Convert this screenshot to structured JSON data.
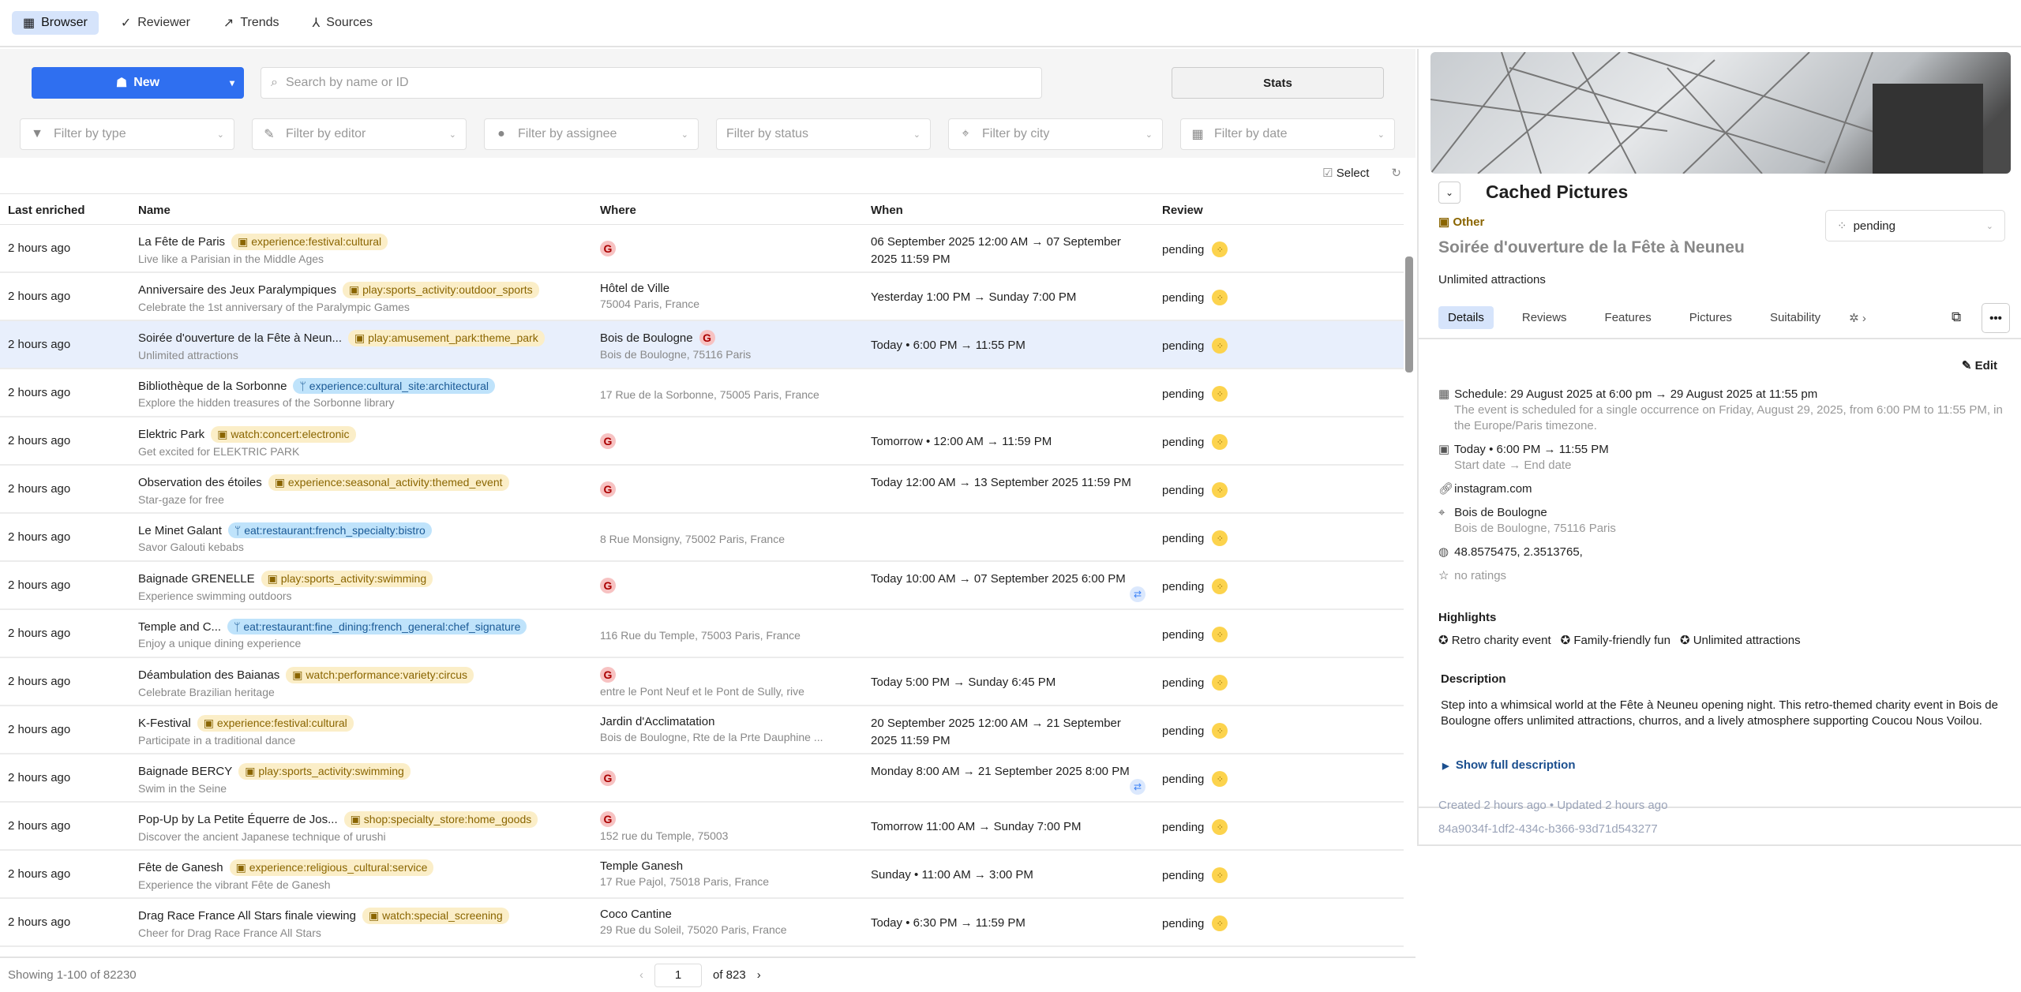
{
  "nav": [
    {
      "label": "Browser",
      "icon": "table-icon",
      "active": true
    },
    {
      "label": "Reviewer",
      "icon": "check-circle-icon"
    },
    {
      "label": "Trends",
      "icon": "chart-line-icon"
    },
    {
      "label": "Sources",
      "icon": "sources-icon"
    }
  ],
  "toolbar": {
    "new_label": "New",
    "search_placeholder": "Search by name or ID",
    "stats_label": "Stats",
    "select_label": "Select"
  },
  "filters": [
    {
      "label": "Filter by type",
      "icon": "funnel-icon"
    },
    {
      "label": "Filter by editor",
      "icon": "editor-icon"
    },
    {
      "label": "Filter by assignee",
      "icon": "user-icon"
    },
    {
      "label": "Filter by status",
      "icon": ""
    },
    {
      "label": "Filter by city",
      "icon": "pin-icon"
    },
    {
      "label": "Filter by date",
      "icon": "calendar-icon"
    }
  ],
  "columns": [
    "Last enriched",
    "Name",
    "Where",
    "When",
    "Review"
  ],
  "colors": {
    "accent": "#2f6ff0",
    "selected_row": "#e8effc",
    "tag_yellow": "#fbeec8",
    "tag_blue": "#bfe3fb",
    "pending": "#fcd34d"
  },
  "rows": [
    {
      "enriched": "2 hours ago",
      "name": "La Fête de Paris",
      "tag": "experience:festival:cultural",
      "tagc": "y",
      "sub": "Live like a Parisian in the Middle Ages",
      "where": "",
      "where_g": true,
      "where_sub": "",
      "when": "06 September 2025 12:00 AM → 07 September 2025 11:59 PM",
      "review": "pending"
    },
    {
      "enriched": "2 hours ago",
      "name": "Anniversaire des Jeux Paralympiques",
      "tag": "play:sports_activity:outdoor_sports",
      "tagc": "y",
      "sub": "Celebrate the 1st anniversary of the Paralympic Games",
      "where": "Hôtel de Ville",
      "where_g": false,
      "where_sub": "75004 Paris, France",
      "when": "Yesterday 1:00 PM → Sunday 7:00 PM",
      "review": "pending"
    },
    {
      "enriched": "2 hours ago",
      "name": "Soirée d'ouverture de la Fête à Neun...",
      "tag": "play:amusement_park:theme_park",
      "tagc": "y",
      "sub": "Unlimited attractions",
      "where": "Bois de Boulogne",
      "where_g": true,
      "where_sub": "Bois de Boulogne, 75116 Paris",
      "when": "Today • 6:00 PM → 11:55 PM",
      "review": "pending",
      "selected": true
    },
    {
      "enriched": "2 hours ago",
      "name": "Bibliothèque de la Sorbonne",
      "tag": "experience:cultural_site:architectural",
      "tagc": "b",
      "sub": "Explore the hidden treasures of the Sorbonne library",
      "where": "",
      "where_g": false,
      "where_sub": "17 Rue de la Sorbonne, 75005 Paris, France",
      "when": "",
      "review": "pending"
    },
    {
      "enriched": "2 hours ago",
      "name": "Elektric Park",
      "tag": "watch:concert:electronic",
      "tagc": "y",
      "sub": "Get excited for ELEKTRIC PARK",
      "where": "",
      "where_g": true,
      "where_sub": "",
      "when": "Tomorrow • 12:00 AM → 11:59 PM",
      "review": "pending"
    },
    {
      "enriched": "2 hours ago",
      "name": "Observation des étoiles",
      "tag": "experience:seasonal_activity:themed_event",
      "tagc": "y",
      "sub": "Star-gaze for free",
      "where": "",
      "where_g": true,
      "where_sub": "",
      "when": "Today 12:00 AM → 13 September 2025 11:59 PM",
      "review": "pending"
    },
    {
      "enriched": "2 hours ago",
      "name": "Le Minet Galant",
      "tag": "eat:restaurant:french_specialty:bistro",
      "tagc": "b",
      "sub": "Savor Galouti kebabs",
      "where": "",
      "where_g": false,
      "where_sub": "8 Rue Monsigny, 75002 Paris, France",
      "when": "",
      "review": "pending"
    },
    {
      "enriched": "2 hours ago",
      "name": "Baignade GRENELLE",
      "tag": "play:sports_activity:swimming",
      "tagc": "y",
      "sub": "Experience swimming outdoors",
      "where": "",
      "where_g": true,
      "where_sub": "",
      "when": "Today 10:00 AM → 07 September 2025 6:00 PM",
      "recurring": true,
      "review": "pending"
    },
    {
      "enriched": "2 hours ago",
      "name": "Temple and C...",
      "tag": "eat:restaurant:fine_dining:french_general:chef_signature",
      "tagc": "b",
      "sub": "Enjoy a unique dining experience",
      "where": "",
      "where_g": false,
      "where_sub": "116 Rue du Temple, 75003 Paris, France",
      "when": "",
      "review": "pending"
    },
    {
      "enriched": "2 hours ago",
      "name": "Déambulation des Baianas",
      "tag": "watch:performance:variety:circus",
      "tagc": "y",
      "sub": "Celebrate Brazilian heritage",
      "where": "",
      "where_g": true,
      "where_sub": "entre le Pont Neuf et le Pont de Sully, rive",
      "when": "Today 5:00 PM → Sunday 6:45 PM",
      "review": "pending"
    },
    {
      "enriched": "2 hours ago",
      "name": "K-Festival",
      "tag": "experience:festival:cultural",
      "tagc": "y",
      "sub": "Participate in a traditional dance",
      "where": "Jardin d'Acclimatation",
      "where_g": false,
      "where_sub": "Bois de Boulogne, Rte de la Prte Dauphine ...",
      "when": "20 September 2025 12:00 AM → 21 September 2025 11:59 PM",
      "review": "pending"
    },
    {
      "enriched": "2 hours ago",
      "name": "Baignade BERCY",
      "tag": "play:sports_activity:swimming",
      "tagc": "y",
      "sub": "Swim in the Seine",
      "where": "",
      "where_g": true,
      "where_sub": "",
      "when": "Monday 8:00 AM → 21 September 2025 8:00 PM",
      "recurring": true,
      "review": "pending"
    },
    {
      "enriched": "2 hours ago",
      "name": "Pop-Up by La Petite Équerre de Jos...",
      "tag": "shop:specialty_store:home_goods",
      "tagc": "y",
      "sub": "Discover the ancient Japanese technique of urushi",
      "where": "",
      "where_g": true,
      "where_sub": "152 rue du Temple, 75003",
      "when": "Tomorrow 11:00 AM → Sunday 7:00 PM",
      "review": "pending"
    },
    {
      "enriched": "2 hours ago",
      "name": "Fête de Ganesh",
      "tag": "experience:religious_cultural:service",
      "tagc": "y",
      "sub": "Experience the vibrant Fête de Ganesh",
      "where": "Temple Ganesh",
      "where_g": false,
      "where_sub": "17 Rue Pajol, 75018 Paris, France",
      "when": "Sunday • 11:00 AM → 3:00 PM",
      "review": "pending"
    },
    {
      "enriched": "2 hours ago",
      "name": "Drag Race France All Stars finale viewing",
      "tag": "watch:special_screening",
      "tagc": "y",
      "sub": "Cheer for Drag Race France All Stars",
      "where": "Coco Cantine",
      "where_g": false,
      "where_sub": "29 Rue du Soleil, 75020 Paris, France",
      "when": "Today • 6:30 PM → 11:59 PM",
      "review": "pending"
    }
  ],
  "footer": {
    "showing": "Showing 1-100 of 82230",
    "page": "1",
    "of": "of 823"
  },
  "detail": {
    "title": "Cached Pictures",
    "category": "Other",
    "status": "pending",
    "name": "Soirée d'ouverture de la Fête à Neuneu",
    "subtitle": "Unlimited attractions",
    "tabs": [
      "Details",
      "Reviews",
      "Features",
      "Pictures",
      "Suitability"
    ],
    "edit": "Edit",
    "schedule": "Schedule: 29 August 2025 at 6:00 pm → 29 August 2025 at 11:55 pm",
    "schedule_note": "The event is scheduled for a single occurrence on Friday, August 29, 2025, from 6:00 PM to 11:55 PM, in the Europe/Paris timezone.",
    "when": "Today • 6:00 PM → 11:55 PM",
    "when_note": "Start date → End date",
    "link": "instagram.com",
    "place": "Bois de Boulogne",
    "place_addr": "Bois de Boulogne, 75116 Paris",
    "coords": "48.8575475, 2.3513765,",
    "ratings": "no ratings",
    "highlights_title": "Highlights",
    "highlights": [
      "Retro charity event",
      "Family-friendly fun",
      "Unlimited attractions"
    ],
    "description_title": "Description",
    "description": "Step into a whimsical world at the Fête à Neuneu opening night. This retro-themed charity event in Bois de Boulogne offers unlimited attractions, churros, and a lively atmosphere supporting Coucou Nous Voilou.",
    "show_full": "Show full description",
    "created": "Created 2 hours ago • Updated 2 hours ago",
    "id": "84a9034f-1df2-434c-b366-93d71d543277"
  }
}
